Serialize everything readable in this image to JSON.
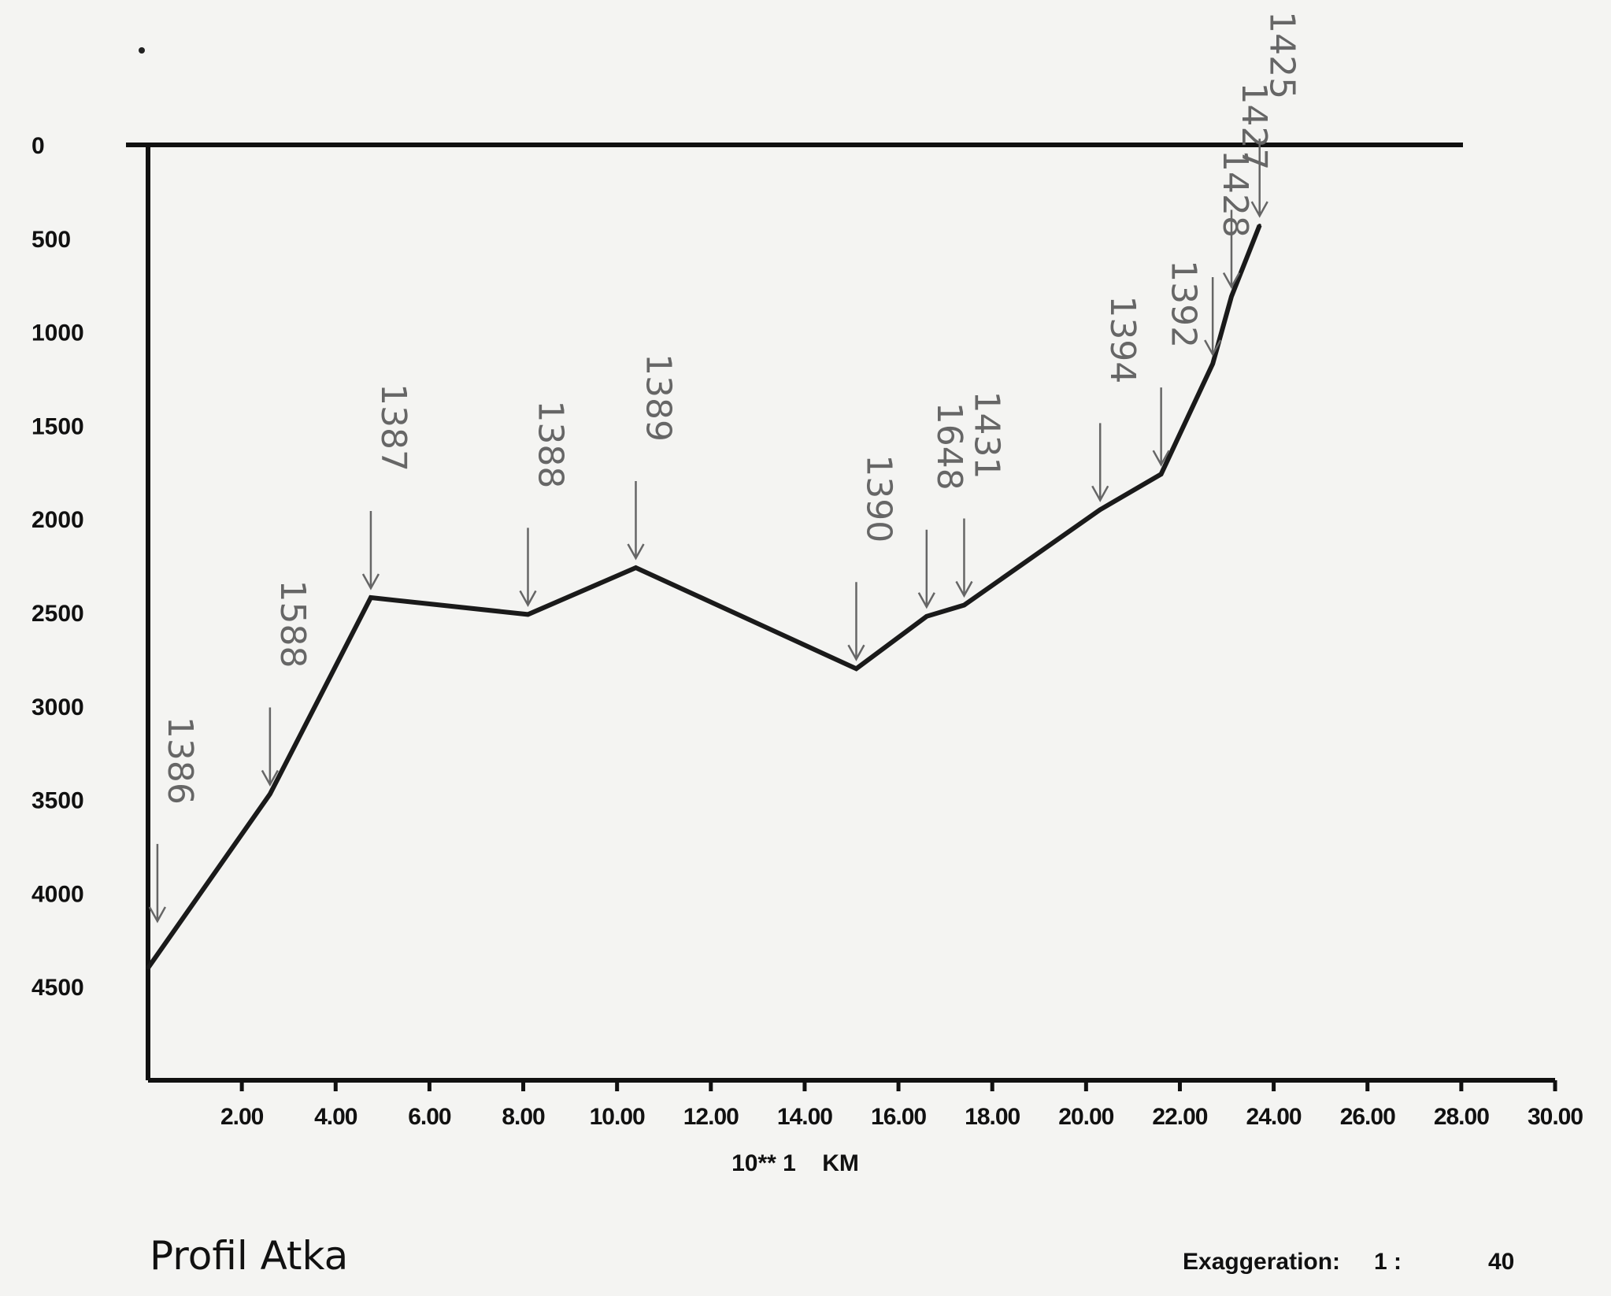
{
  "chart_data": {
    "type": "line",
    "title": "Profil Atka",
    "xlabel": "10** 1    KM",
    "ylabel": "",
    "xlim": [
      0,
      30
    ],
    "ylim": [
      0,
      5000
    ],
    "y_inverted": true,
    "y_ticks": [
      "0",
      "500",
      "1000",
      "1500",
      "2000",
      "2500",
      "3000",
      "3500",
      "4000",
      "4500"
    ],
    "y_tick_values": [
      0,
      500,
      1000,
      1500,
      2000,
      2500,
      3000,
      3500,
      4000,
      4500
    ],
    "x_ticks": [
      "2.00",
      "4.00",
      "6.00",
      "8.00",
      "10.00",
      "12.00",
      "14.00",
      "16.00",
      "18.00",
      "20.00",
      "22.00",
      "24.00",
      "26.00",
      "28.00",
      "30.00"
    ],
    "x_tick_values": [
      2,
      4,
      6,
      8,
      10,
      12,
      14,
      16,
      18,
      20,
      22,
      24,
      26,
      28,
      30
    ],
    "series": [
      {
        "x": [
          0,
          2.6,
          4.75,
          8.1,
          10.4,
          15.1,
          16.6,
          17.4,
          20.3,
          21.6,
          22.7,
          23.1,
          23.7
        ],
        "y": [
          4400,
          3470,
          2420,
          2510,
          2260,
          2800,
          2520,
          2460,
          1950,
          1760,
          1170,
          810,
          430
        ]
      }
    ],
    "annotations": [
      {
        "text": "1386",
        "x": 0.2,
        "y": 4200
      },
      {
        "text": "1588",
        "x": 2.6,
        "y": 3470
      },
      {
        "text": "1387",
        "x": 4.75,
        "y": 2420
      },
      {
        "text": "1388",
        "x": 8.1,
        "y": 2510
      },
      {
        "text": "1389",
        "x": 10.4,
        "y": 2260
      },
      {
        "text": "1390",
        "x": 15.1,
        "y": 2800
      },
      {
        "text": "1648",
        "x": 16.6,
        "y": 2520
      },
      {
        "text": "1431",
        "x": 17.4,
        "y": 2460
      },
      {
        "text": "1394",
        "x": 20.3,
        "y": 1950
      },
      {
        "text": "1392",
        "x": 21.6,
        "y": 1760
      },
      {
        "text": "1428",
        "x": 22.7,
        "y": 1170
      },
      {
        "text": "1427",
        "x": 23.1,
        "y": 810
      },
      {
        "text": "1425",
        "x": 23.7,
        "y": 430
      }
    ]
  },
  "footer": {
    "exaggeration_label": "Exaggeration:",
    "exaggeration_ratio": "1 :",
    "exaggeration_value": "40"
  },
  "colors": {
    "line": "#1a1a1a",
    "annotation": "#666666",
    "background": "#f4f4f2"
  }
}
